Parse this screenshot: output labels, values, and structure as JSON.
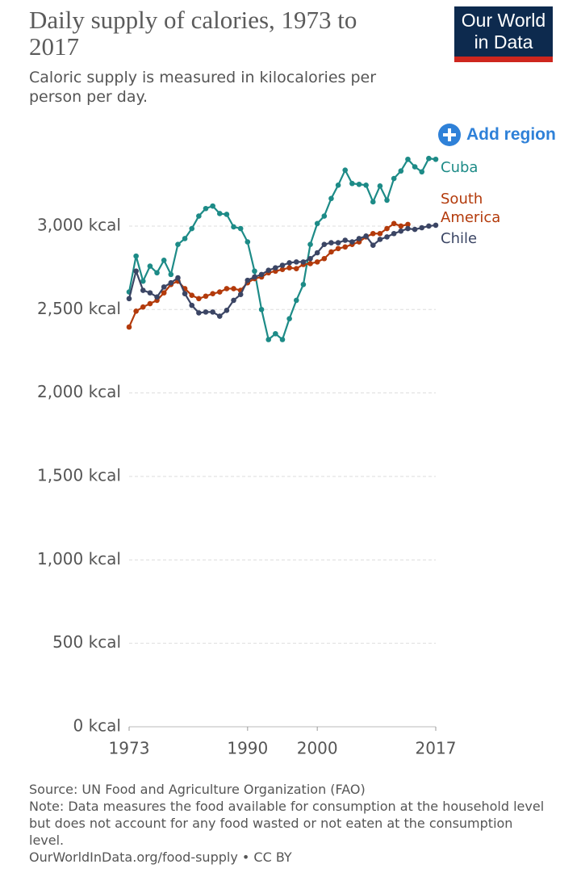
{
  "chart_data": {
    "type": "line",
    "title": "Daily supply of calories, 1973 to 2017",
    "subtitle": "Caloric supply is measured in kilocalories per person per day.",
    "logo": "Our World in Data",
    "button": "Add region",
    "x": [
      1973,
      1974,
      1975,
      1976,
      1977,
      1978,
      1979,
      1980,
      1981,
      1982,
      1983,
      1984,
      1985,
      1986,
      1987,
      1988,
      1989,
      1990,
      1991,
      1992,
      1993,
      1994,
      1995,
      1996,
      1997,
      1998,
      1999,
      2000,
      2001,
      2002,
      2003,
      2004,
      2005,
      2006,
      2007,
      2008,
      2009,
      2010,
      2011,
      2012,
      2013,
      2014,
      2015,
      2016,
      2017
    ],
    "xlim": [
      1973,
      2017
    ],
    "xticks": [
      1973,
      1990,
      2000,
      2017
    ],
    "ylim": [
      0,
      3440
    ],
    "yticks": [
      {
        "value": 0,
        "label": "0 kcal"
      },
      {
        "value": 500,
        "label": "500 kcal"
      },
      {
        "value": 1000,
        "label": "1,000 kcal"
      },
      {
        "value": 1500,
        "label": "1,500 kcal"
      },
      {
        "value": 2000,
        "label": "2,000 kcal"
      },
      {
        "value": 2500,
        "label": "2,500 kcal"
      },
      {
        "value": 3000,
        "label": "3,000 kcal"
      }
    ],
    "grid": true,
    "series": [
      {
        "name": "Cuba",
        "color": "#1d8b87",
        "values": [
          2605,
          2820,
          2670,
          2760,
          2720,
          2795,
          2710,
          2890,
          2925,
          2985,
          3060,
          3105,
          3120,
          3075,
          3070,
          2995,
          2985,
          2905,
          2730,
          2500,
          2320,
          2355,
          2320,
          2445,
          2555,
          2650,
          2890,
          3015,
          3060,
          3165,
          3245,
          3335,
          3255,
          3250,
          3245,
          3145,
          3240,
          3155,
          3285,
          3330,
          3400,
          3355,
          3325,
          3405,
          3400
        ]
      },
      {
        "name": "South America",
        "color": "#b33a0b",
        "values": [
          2395,
          2490,
          2515,
          2535,
          2555,
          2600,
          2650,
          2670,
          2625,
          2585,
          2565,
          2580,
          2595,
          2605,
          2625,
          2625,
          2615,
          2660,
          2685,
          2695,
          2720,
          2730,
          2740,
          2750,
          2745,
          2770,
          2775,
          2785,
          2805,
          2845,
          2865,
          2875,
          2890,
          2905,
          2935,
          2955,
          2955,
          2985,
          3015,
          3000,
          3010,
          null,
          null,
          null,
          null
        ]
      },
      {
        "name": "Chile",
        "color": "#3b4564",
        "values": [
          2565,
          2730,
          2615,
          2600,
          2575,
          2635,
          2660,
          2690,
          2595,
          2525,
          2480,
          2485,
          2485,
          2460,
          2495,
          2555,
          2590,
          2675,
          2695,
          2710,
          2735,
          2750,
          2765,
          2780,
          2785,
          2785,
          2805,
          2840,
          2890,
          2900,
          2900,
          2915,
          2905,
          2925,
          2940,
          2885,
          2920,
          2935,
          2955,
          2970,
          2985,
          2980,
          2990,
          3000,
          3005
        ]
      }
    ],
    "source": "Source: UN Food and Agriculture Organization (FAO)",
    "note": "Note: Data measures the food available for consumption at the household level but does not account for any food wasted or not eaten at the consumption level.",
    "url": "OurWorldInData.org/food-supply • CC BY"
  }
}
